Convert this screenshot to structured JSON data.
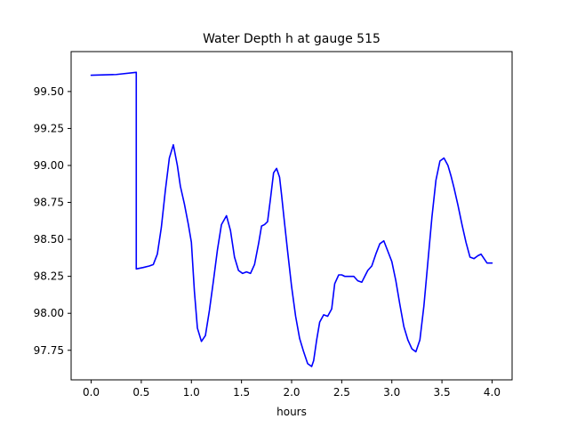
{
  "chart_data": {
    "type": "line",
    "title": "Water Depth h at gauge 515",
    "xlabel": "hours",
    "ylabel": "",
    "xlim": [
      -0.2,
      4.2
    ],
    "ylim": [
      97.55,
      99.77
    ],
    "xticks": [
      0.0,
      0.5,
      1.0,
      1.5,
      2.0,
      2.5,
      3.0,
      3.5,
      4.0
    ],
    "xtick_labels": [
      "0.0",
      "0.5",
      "1.0",
      "1.5",
      "2.0",
      "2.5",
      "3.0",
      "3.5",
      "4.0"
    ],
    "yticks": [
      97.75,
      98.0,
      98.25,
      98.5,
      98.75,
      99.0,
      99.25,
      99.5
    ],
    "ytick_labels": [
      "97.75",
      "98.00",
      "98.25",
      "98.50",
      "98.75",
      "99.00",
      "99.25",
      "99.50"
    ],
    "grid": false,
    "series": [
      {
        "name": "",
        "color": "#0000ff",
        "x": [
          0.0,
          0.25,
          0.45,
          0.45,
          0.52,
          0.58,
          0.62,
          0.66,
          0.7,
          0.74,
          0.78,
          0.82,
          0.86,
          0.89,
          0.93,
          0.97,
          1.0,
          1.03,
          1.06,
          1.1,
          1.14,
          1.18,
          1.22,
          1.26,
          1.3,
          1.35,
          1.39,
          1.43,
          1.47,
          1.51,
          1.55,
          1.59,
          1.63,
          1.67,
          1.7,
          1.73,
          1.76,
          1.79,
          1.82,
          1.85,
          1.88,
          1.9,
          1.92,
          1.96,
          2.0,
          2.04,
          2.08,
          2.12,
          2.16,
          2.2,
          2.22,
          2.25,
          2.28,
          2.32,
          2.36,
          2.4,
          2.43,
          2.47,
          2.5,
          2.53,
          2.57,
          2.62,
          2.66,
          2.7,
          2.73,
          2.76,
          2.8,
          2.84,
          2.88,
          2.92,
          2.96,
          3.0,
          3.04,
          3.08,
          3.12,
          3.16,
          3.2,
          3.24,
          3.28,
          3.32,
          3.36,
          3.4,
          3.44,
          3.48,
          3.52,
          3.56,
          3.59,
          3.62,
          3.66,
          3.7,
          3.74,
          3.78,
          3.82,
          3.86,
          3.89,
          3.92,
          3.95,
          3.98,
          4.0
        ],
        "y": [
          99.61,
          99.615,
          99.63,
          98.3,
          98.31,
          98.32,
          98.33,
          98.4,
          98.58,
          98.83,
          99.05,
          99.14,
          99.0,
          98.86,
          98.74,
          98.6,
          98.48,
          98.15,
          97.9,
          97.81,
          97.85,
          98.02,
          98.22,
          98.43,
          98.6,
          98.66,
          98.56,
          98.38,
          98.29,
          98.27,
          98.28,
          98.27,
          98.33,
          98.47,
          98.59,
          98.6,
          98.62,
          98.78,
          98.95,
          98.98,
          98.92,
          98.8,
          98.67,
          98.42,
          98.18,
          97.98,
          97.83,
          97.74,
          97.66,
          97.64,
          97.68,
          97.82,
          97.94,
          97.99,
          97.98,
          98.03,
          98.2,
          98.26,
          98.26,
          98.25,
          98.25,
          98.25,
          98.22,
          98.21,
          98.25,
          98.29,
          98.32,
          98.4,
          98.47,
          98.49,
          98.42,
          98.35,
          98.22,
          98.06,
          97.91,
          97.82,
          97.76,
          97.74,
          97.82,
          98.05,
          98.35,
          98.65,
          98.9,
          99.03,
          99.05,
          99.0,
          98.93,
          98.85,
          98.73,
          98.6,
          98.48,
          98.38,
          98.37,
          98.39,
          98.4,
          98.37,
          98.34,
          98.34,
          98.34
        ]
      }
    ]
  }
}
